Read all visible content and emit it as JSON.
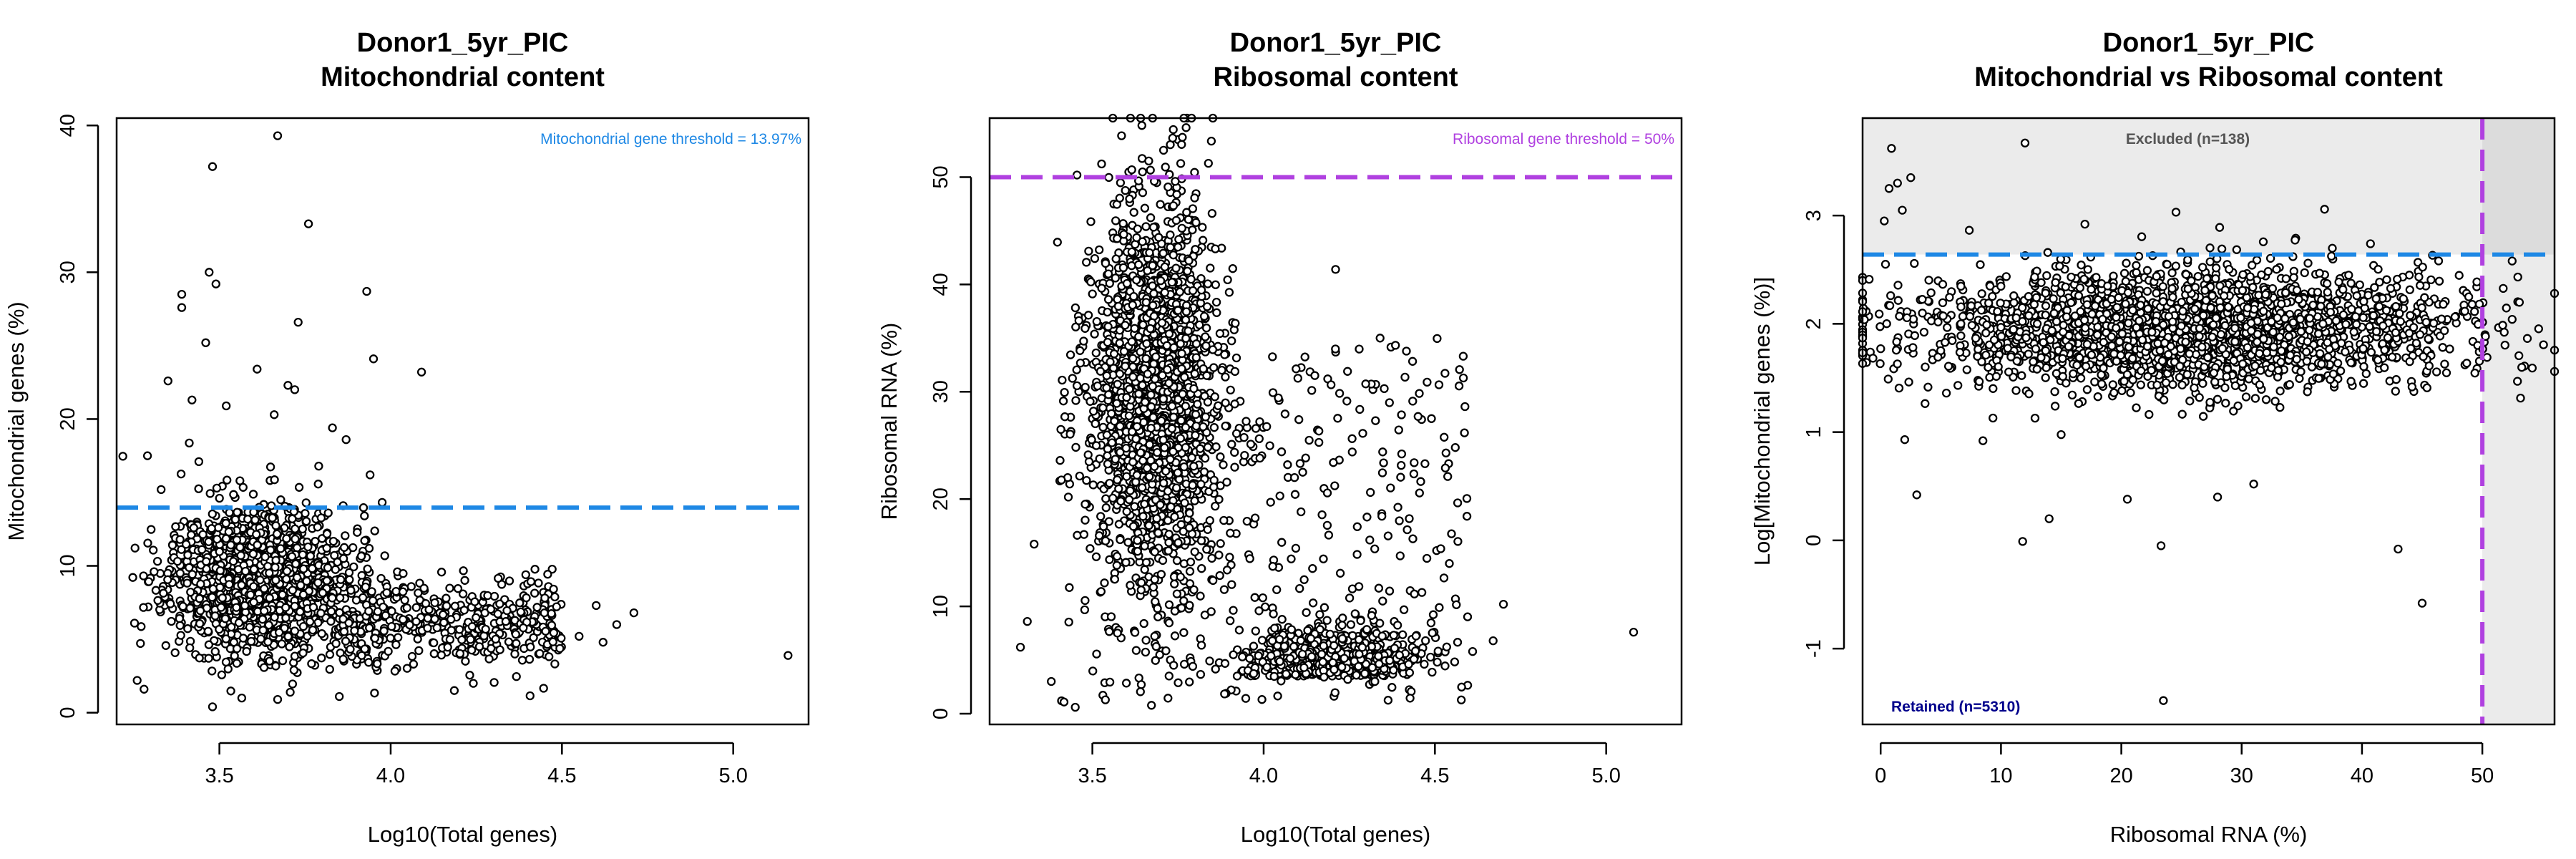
{
  "colors": {
    "mito_threshold": "#1E88E5",
    "ribo_threshold": "#B040E0",
    "excluded_label": "#555555",
    "retained_label": "#00008B",
    "excluded_shade": "#ebebeb",
    "excluded_shade_dark": "#dcdcdc"
  },
  "chart_data": [
    {
      "type": "scatter",
      "title": "Donor1_5yr_PIC",
      "subtitle": "Mitochondrial content",
      "xlabel": "Log10(Total genes)",
      "ylabel": "Mitochondrial genes (%)",
      "xlim": [
        3.2,
        5.22
      ],
      "ylim": [
        -0.8,
        40.5
      ],
      "xticks": [
        3.5,
        4.0,
        4.5,
        5.0
      ],
      "xtick_labels": [
        "3.5",
        "4.0",
        "4.5",
        "5.0"
      ],
      "yticks": [
        0,
        10,
        20,
        30,
        40
      ],
      "ytick_labels": [
        "0",
        "10",
        "20",
        "30",
        "40"
      ],
      "threshold": {
        "axis": "y",
        "value": 13.97,
        "label": "Mitochondrial gene threshold = 13.97%"
      },
      "grid": false,
      "points": [
        [
          3.67,
          39.3
        ],
        [
          3.48,
          37.2
        ],
        [
          3.76,
          33.3
        ],
        [
          3.47,
          30.0
        ],
        [
          3.49,
          29.2
        ],
        [
          3.93,
          28.7
        ],
        [
          3.39,
          28.5
        ],
        [
          3.39,
          27.6
        ],
        [
          3.73,
          26.6
        ],
        [
          3.46,
          25.2
        ],
        [
          3.95,
          24.1
        ],
        [
          4.09,
          23.2
        ],
        [
          3.61,
          23.4
        ],
        [
          3.35,
          22.6
        ],
        [
          3.7,
          22.3
        ],
        [
          3.72,
          22.0
        ],
        [
          3.42,
          21.3
        ],
        [
          3.52,
          20.9
        ],
        [
          3.66,
          20.3
        ],
        [
          3.83,
          19.4
        ],
        [
          3.87,
          18.6
        ],
        [
          3.29,
          17.5
        ],
        [
          3.44,
          17.1
        ],
        [
          3.79,
          16.8
        ],
        [
          3.94,
          16.2
        ],
        [
          3.56,
          15.8
        ],
        [
          3.33,
          15.2
        ],
        [
          5.16,
          3.9
        ],
        [
          4.71,
          6.8
        ],
        [
          4.66,
          6.0
        ],
        [
          4.62,
          4.8
        ],
        [
          4.55,
          5.2
        ],
        [
          4.6,
          7.3
        ],
        [
          3.26,
          2.2
        ],
        [
          3.28,
          1.6
        ],
        [
          3.48,
          0.4
        ],
        [
          3.67,
          0.9
        ],
        [
          3.85,
          1.1
        ]
      ],
      "cluster": {
        "seed": 11,
        "count": 1500,
        "cx": 3.62,
        "cy": 9.0,
        "sx": 0.13,
        "sy": 2.5,
        "tail": {
          "count": 450,
          "xmin": 3.85,
          "xmax": 4.5,
          "cy": 6.0,
          "sy": 1.6
        }
      }
    },
    {
      "type": "scatter",
      "title": "Donor1_5yr_PIC",
      "subtitle": "Ribosomal content",
      "xlabel": "Log10(Total genes)",
      "ylabel": "Ribosomal RNA (%)",
      "xlim": [
        3.2,
        5.22
      ],
      "ylim": [
        -1.0,
        55.5
      ],
      "xticks": [
        3.5,
        4.0,
        4.5,
        5.0
      ],
      "xtick_labels": [
        "3.5",
        "4.0",
        "4.5",
        "5.0"
      ],
      "yticks": [
        0,
        10,
        20,
        30,
        40,
        50
      ],
      "ytick_labels": [
        "0",
        "10",
        "20",
        "30",
        "40",
        "50"
      ],
      "threshold": {
        "axis": "y",
        "value": 50,
        "label": "Ribosomal gene threshold = 50%"
      },
      "grid": false,
      "points": [
        [
          3.75,
          53.5
        ],
        [
          4.21,
          41.4
        ],
        [
          5.08,
          7.6
        ],
        [
          4.7,
          10.2
        ],
        [
          4.67,
          6.8
        ],
        [
          4.61,
          5.8
        ],
        [
          4.54,
          23.3
        ],
        [
          4.49,
          27.5
        ],
        [
          4.34,
          35.0
        ],
        [
          3.31,
          8.6
        ],
        [
          3.29,
          6.2
        ],
        [
          3.33,
          15.8
        ],
        [
          3.38,
          3.0
        ],
        [
          3.41,
          1.2
        ],
        [
          3.45,
          0.6
        ]
      ],
      "cluster": {
        "seed": 23,
        "count": 1800,
        "cx": 3.68,
        "cy": 30.0,
        "sx": 0.09,
        "sy": 9.0,
        "low": {
          "count": 700,
          "cx": 4.2,
          "cy": 3.5,
          "sx": 0.12,
          "sy": 2.2
        },
        "scatter": {
          "count": 400,
          "xmin": 3.4,
          "xmax": 4.6,
          "ymin": 1,
          "ymax": 35
        }
      }
    },
    {
      "type": "scatter",
      "title": "Donor1_5yr_PIC",
      "subtitle": "Mitochondrial vs Ribosomal content",
      "xlabel": "Ribosomal RNA (%)",
      "ylabel": "Log[Mitochondrial genes (%)]",
      "xlim": [
        -1.5,
        56.0
      ],
      "ylim": [
        -1.7,
        3.9
      ],
      "xticks": [
        0,
        10,
        20,
        30,
        40,
        50
      ],
      "xtick_labels": [
        "0",
        "10",
        "20",
        "30",
        "40",
        "50"
      ],
      "yticks": [
        -1,
        0,
        1,
        2,
        3
      ],
      "ytick_labels": [
        "-1",
        "0",
        "1",
        "2",
        "3"
      ],
      "thresholds": [
        {
          "axis": "y",
          "value": 2.64
        },
        {
          "axis": "x",
          "value": 50
        }
      ],
      "regions": {
        "excluded_label": "Excluded (n=138)",
        "retained_label": "Retained (n=5310)"
      },
      "grid": false,
      "points": [
        [
          53.5,
          1.61
        ],
        [
          12.0,
          3.67
        ],
        [
          0.9,
          3.62
        ],
        [
          23.5,
          -1.48
        ],
        [
          45.0,
          -0.58
        ],
        [
          43.0,
          -0.08
        ],
        [
          11.8,
          -0.01
        ],
        [
          23.3,
          -0.05
        ],
        [
          3.0,
          0.42
        ],
        [
          14.0,
          0.2
        ],
        [
          20.5,
          0.38
        ],
        [
          28.0,
          0.4
        ],
        [
          31.0,
          0.52
        ],
        [
          8.5,
          0.92
        ],
        [
          2.0,
          0.93
        ],
        [
          0.4,
          2.55
        ],
        [
          0.7,
          3.25
        ],
        [
          1.4,
          3.3
        ],
        [
          2.5,
          3.35
        ],
        [
          1.8,
          3.05
        ],
        [
          0.3,
          2.95
        ]
      ],
      "cluster": {
        "seed": 37,
        "count": 2300,
        "cx": 25.0,
        "cy": 1.95,
        "sx": 11.0,
        "sy": 0.28
      }
    }
  ]
}
